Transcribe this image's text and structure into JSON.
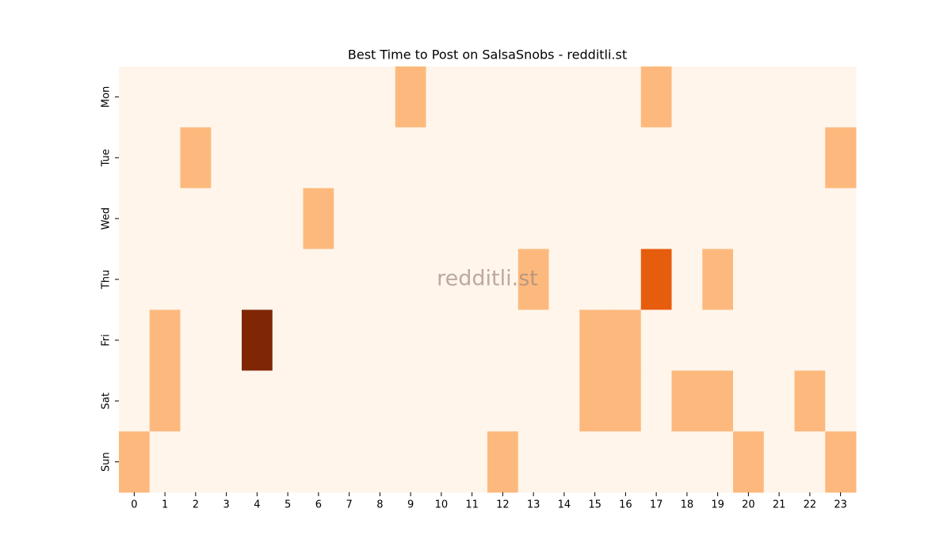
{
  "chart_data": {
    "type": "heatmap",
    "title": "Best Time to Post on SalsaSnobs - redditli.st",
    "x": [
      0,
      1,
      2,
      3,
      4,
      5,
      6,
      7,
      8,
      9,
      10,
      11,
      12,
      13,
      14,
      15,
      16,
      17,
      18,
      19,
      20,
      21,
      22,
      23
    ],
    "y": [
      "Mon",
      "Tue",
      "Wed",
      "Thu",
      "Fri",
      "Sat",
      "Sun"
    ],
    "values": [
      [
        0,
        0,
        0,
        0,
        0,
        0,
        0,
        0,
        0,
        1,
        0,
        0,
        0,
        0,
        0,
        0,
        0,
        1,
        0,
        0,
        0,
        0,
        0,
        0
      ],
      [
        0,
        0,
        1,
        0,
        0,
        0,
        0,
        0,
        0,
        0,
        0,
        0,
        0,
        0,
        0,
        0,
        0,
        0,
        0,
        0,
        0,
        0,
        0,
        1
      ],
      [
        0,
        0,
        0,
        0,
        0,
        0,
        1,
        0,
        0,
        0,
        0,
        0,
        0,
        0,
        0,
        0,
        0,
        0,
        0,
        0,
        0,
        0,
        0,
        0
      ],
      [
        0,
        0,
        0,
        0,
        0,
        0,
        0,
        0,
        0,
        0,
        0,
        0,
        0,
        1,
        0,
        0,
        0,
        2,
        0,
        1,
        0,
        0,
        0,
        0
      ],
      [
        0,
        1,
        0,
        0,
        3,
        0,
        0,
        0,
        0,
        0,
        0,
        0,
        0,
        0,
        0,
        1,
        1,
        0,
        0,
        0,
        0,
        0,
        0,
        0
      ],
      [
        0,
        1,
        0,
        0,
        0,
        0,
        0,
        0,
        0,
        0,
        0,
        0,
        0,
        0,
        0,
        1,
        1,
        0,
        1,
        1,
        0,
        0,
        1,
        0
      ],
      [
        1,
        0,
        0,
        0,
        0,
        0,
        0,
        0,
        0,
        0,
        0,
        0,
        1,
        0,
        0,
        0,
        0,
        0,
        0,
        0,
        1,
        0,
        0,
        1
      ]
    ],
    "zlim": [
      0,
      3
    ],
    "colorscale": [
      "#fff5eb",
      "#fdb97d",
      "#e65d0e",
      "#7f2704"
    ],
    "watermark": "redditli.st"
  }
}
